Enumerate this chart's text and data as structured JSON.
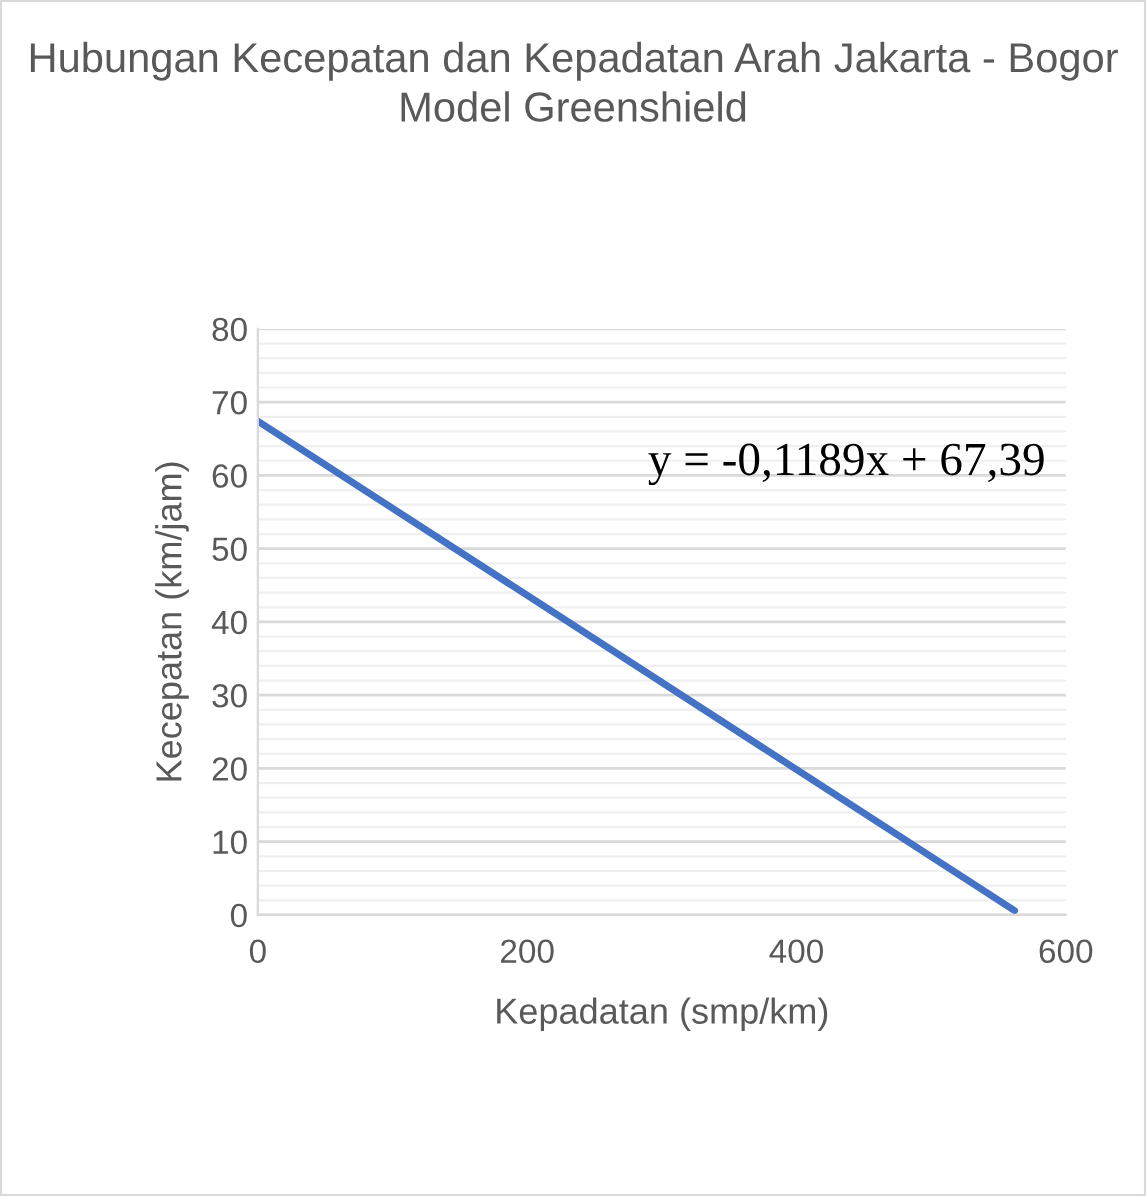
{
  "chart_data": {
    "type": "line",
    "title": "Hubungan Kecepatan dan Kepadatan Arah Jakarta - Bogor Model Greenshield",
    "xlabel": "Kepadatan (smp/km)",
    "ylabel": "Kecepatan (km/jam)",
    "series": [
      {
        "x": [
          0,
          562
        ],
        "values": [
          67.4,
          0.6
        ],
        "color": "#4472c4"
      }
    ],
    "xlim": [
      0,
      600
    ],
    "xticks": [
      0,
      200,
      400,
      600
    ],
    "ylim": [
      0,
      80
    ],
    "yticks": [
      0,
      10,
      20,
      30,
      40,
      50,
      60,
      70,
      80
    ],
    "grid": "y",
    "marker": "none",
    "line_style": "solid",
    "annotations": [
      "y = -0,1189x + 67,39"
    ]
  }
}
